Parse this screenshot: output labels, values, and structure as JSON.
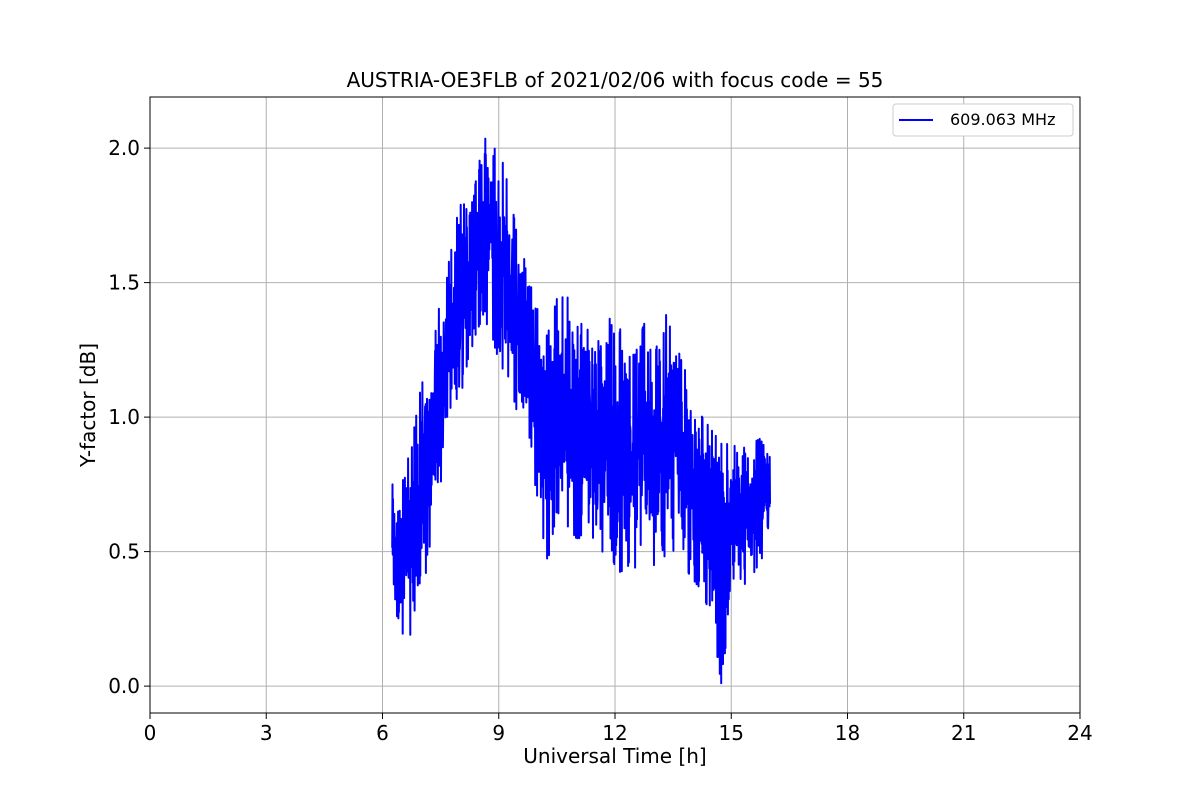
{
  "chart_data": {
    "type": "line",
    "title": "AUSTRIA-OE3FLB of 2021/02/06 with focus code = 55",
    "xlabel": "Universal Time [h]",
    "ylabel": "Y-factor [dB]",
    "xlim": [
      0,
      24
    ],
    "ylim": [
      -0.1,
      2.19
    ],
    "xticks": [
      0,
      3,
      6,
      9,
      12,
      15,
      18,
      21,
      24
    ],
    "xtick_labels": [
      "0",
      "3",
      "6",
      "9",
      "12",
      "15",
      "18",
      "21",
      "24"
    ],
    "yticks": [
      0.0,
      0.5,
      1.0,
      1.5,
      2.0
    ],
    "ytick_labels": [
      "0.0",
      "0.5",
      "1.0",
      "1.5",
      "2.0"
    ],
    "grid": true,
    "legend_position": "top-right",
    "series": [
      {
        "name": "609.063 MHz",
        "color": "#0000ff",
        "envelope_x": [
          6.25,
          6.5,
          6.75,
          7.0,
          7.25,
          7.5,
          7.75,
          8.0,
          8.25,
          8.5,
          8.75,
          9.0,
          9.25,
          9.5,
          9.75,
          10.0,
          10.25,
          10.5,
          10.75,
          11.0,
          11.25,
          11.5,
          11.75,
          12.0,
          12.25,
          12.5,
          12.75,
          13.0,
          13.25,
          13.5,
          13.75,
          14.0,
          14.25,
          14.5,
          14.75,
          15.0,
          15.25,
          15.5,
          15.75,
          16.0
        ],
        "envelope_min": [
          0.35,
          0.17,
          0.15,
          0.3,
          0.55,
          0.75,
          1.0,
          1.05,
          1.25,
          1.3,
          1.35,
          1.2,
          1.15,
          1.0,
          0.9,
          0.7,
          0.45,
          0.65,
          0.6,
          0.55,
          0.55,
          0.5,
          0.5,
          0.45,
          0.4,
          0.4,
          0.5,
          0.45,
          0.45,
          0.5,
          0.45,
          0.4,
          0.35,
          0.25,
          0.0,
          0.35,
          0.4,
          0.35,
          0.45,
          0.6
        ],
        "envelope_max": [
          0.78,
          0.75,
          0.9,
          1.12,
          1.2,
          1.45,
          1.6,
          1.82,
          1.75,
          1.95,
          2.09,
          2.0,
          1.87,
          1.65,
          1.55,
          1.4,
          1.3,
          1.44,
          1.45,
          1.4,
          1.3,
          1.45,
          1.42,
          1.3,
          1.35,
          1.22,
          1.35,
          1.2,
          1.41,
          1.3,
          1.2,
          1.1,
          1.0,
          0.95,
          0.9,
          0.9,
          0.88,
          0.9,
          0.92,
          0.85
        ]
      }
    ]
  }
}
